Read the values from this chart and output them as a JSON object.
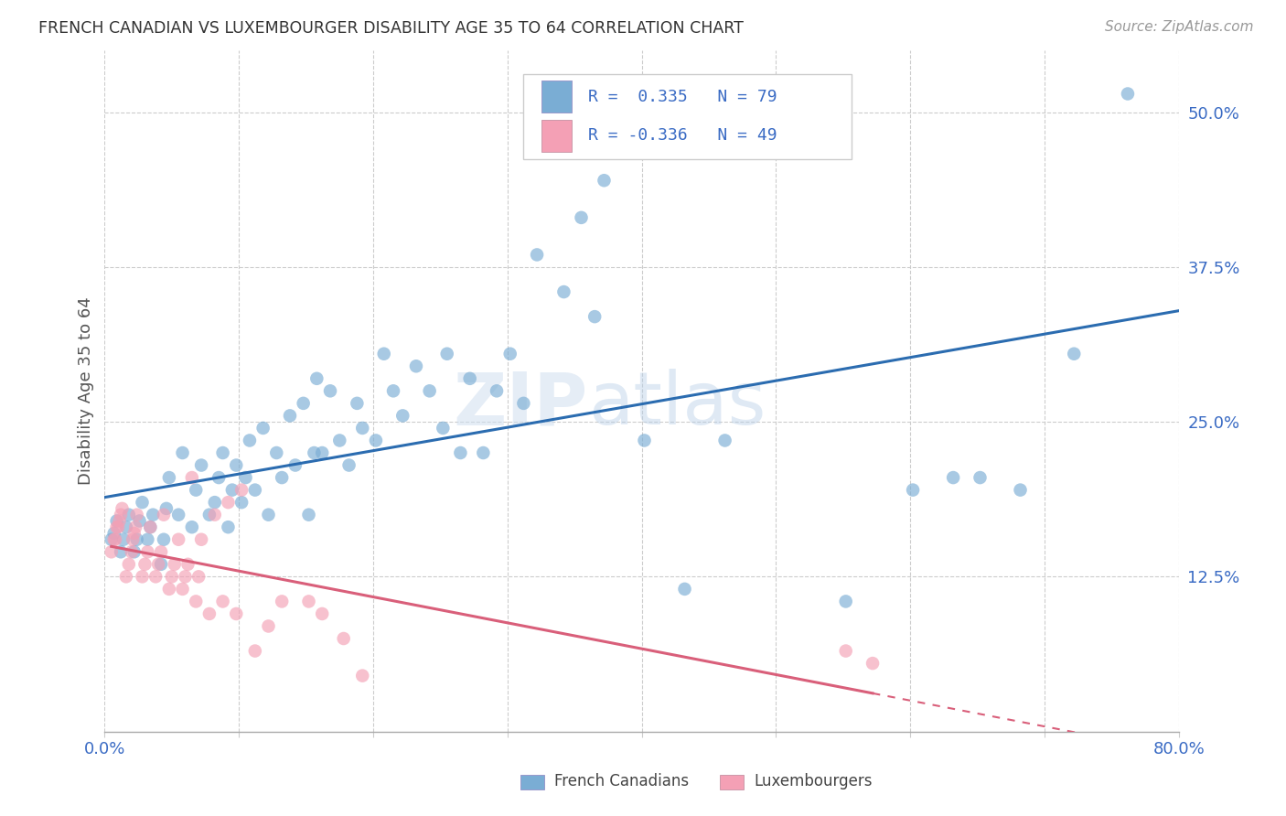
{
  "title": "FRENCH CANADIAN VS LUXEMBOURGER DISABILITY AGE 35 TO 64 CORRELATION CHART",
  "source": "Source: ZipAtlas.com",
  "ylabel": "Disability Age 35 to 64",
  "xlim": [
    0,
    0.8
  ],
  "ylim": [
    0,
    0.55
  ],
  "yticks": [
    0.125,
    0.25,
    0.375,
    0.5
  ],
  "ytick_labels": [
    "12.5%",
    "25.0%",
    "37.5%",
    "50.0%"
  ],
  "xticks": [
    0.0,
    0.1,
    0.2,
    0.3,
    0.4,
    0.5,
    0.6,
    0.7,
    0.8
  ],
  "xtick_labels_show": [
    "0.0%",
    "80.0%"
  ],
  "blue_color": "#7aadd4",
  "pink_color": "#f4a0b5",
  "blue_line_color": "#2b6cb0",
  "pink_line_color": "#d95f7a",
  "legend_blue_R": "R =  0.335",
  "legend_blue_N": "N = 79",
  "legend_pink_R": "R = -0.336",
  "legend_pink_N": "N = 49",
  "legend_label_blue": "French Canadians",
  "legend_label_pink": "Luxembourgers",
  "watermark": "ZIPatlas",
  "blue_x": [
    0.005,
    0.007,
    0.009,
    0.012,
    0.014,
    0.016,
    0.018,
    0.022,
    0.024,
    0.026,
    0.028,
    0.032,
    0.034,
    0.036,
    0.042,
    0.044,
    0.046,
    0.048,
    0.055,
    0.058,
    0.065,
    0.068,
    0.072,
    0.078,
    0.082,
    0.085,
    0.088,
    0.092,
    0.095,
    0.098,
    0.102,
    0.105,
    0.108,
    0.112,
    0.118,
    0.122,
    0.128,
    0.132,
    0.138,
    0.142,
    0.148,
    0.152,
    0.156,
    0.158,
    0.162,
    0.168,
    0.175,
    0.182,
    0.188,
    0.192,
    0.202,
    0.208,
    0.215,
    0.222,
    0.232,
    0.242,
    0.252,
    0.255,
    0.265,
    0.272,
    0.282,
    0.292,
    0.302,
    0.312,
    0.322,
    0.342,
    0.355,
    0.365,
    0.372,
    0.402,
    0.432,
    0.462,
    0.552,
    0.602,
    0.632,
    0.652,
    0.682,
    0.722,
    0.762
  ],
  "blue_y": [
    0.155,
    0.16,
    0.17,
    0.145,
    0.155,
    0.165,
    0.175,
    0.145,
    0.155,
    0.17,
    0.185,
    0.155,
    0.165,
    0.175,
    0.135,
    0.155,
    0.18,
    0.205,
    0.175,
    0.225,
    0.165,
    0.195,
    0.215,
    0.175,
    0.185,
    0.205,
    0.225,
    0.165,
    0.195,
    0.215,
    0.185,
    0.205,
    0.235,
    0.195,
    0.245,
    0.175,
    0.225,
    0.205,
    0.255,
    0.215,
    0.265,
    0.175,
    0.225,
    0.285,
    0.225,
    0.275,
    0.235,
    0.215,
    0.265,
    0.245,
    0.235,
    0.305,
    0.275,
    0.255,
    0.295,
    0.275,
    0.245,
    0.305,
    0.225,
    0.285,
    0.225,
    0.275,
    0.305,
    0.265,
    0.385,
    0.355,
    0.415,
    0.335,
    0.445,
    0.235,
    0.115,
    0.235,
    0.105,
    0.195,
    0.205,
    0.205,
    0.195,
    0.305,
    0.515
  ],
  "pink_x": [
    0.005,
    0.007,
    0.008,
    0.009,
    0.01,
    0.011,
    0.012,
    0.013,
    0.016,
    0.018,
    0.02,
    0.021,
    0.022,
    0.023,
    0.024,
    0.028,
    0.03,
    0.032,
    0.034,
    0.038,
    0.04,
    0.042,
    0.044,
    0.048,
    0.05,
    0.052,
    0.055,
    0.058,
    0.06,
    0.062,
    0.065,
    0.068,
    0.07,
    0.072,
    0.078,
    0.082,
    0.088,
    0.092,
    0.098,
    0.102,
    0.112,
    0.122,
    0.132,
    0.152,
    0.162,
    0.178,
    0.192,
    0.552,
    0.572
  ],
  "pink_y": [
    0.145,
    0.155,
    0.155,
    0.165,
    0.165,
    0.17,
    0.175,
    0.18,
    0.125,
    0.135,
    0.145,
    0.155,
    0.16,
    0.165,
    0.175,
    0.125,
    0.135,
    0.145,
    0.165,
    0.125,
    0.135,
    0.145,
    0.175,
    0.115,
    0.125,
    0.135,
    0.155,
    0.115,
    0.125,
    0.135,
    0.205,
    0.105,
    0.125,
    0.155,
    0.095,
    0.175,
    0.105,
    0.185,
    0.095,
    0.195,
    0.065,
    0.085,
    0.105,
    0.105,
    0.095,
    0.075,
    0.045,
    0.065,
    0.055
  ]
}
